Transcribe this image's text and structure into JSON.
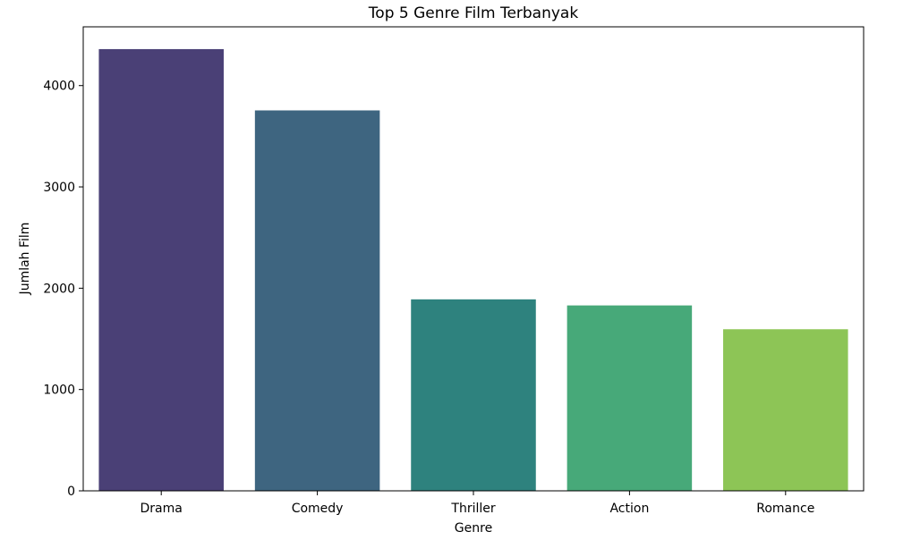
{
  "chart_data": {
    "type": "bar",
    "title": "Top 5 Genre Film Terbanyak",
    "xlabel": "Genre",
    "ylabel": "Jumlah Film",
    "categories": [
      "Drama",
      "Comedy",
      "Thriller",
      "Action",
      "Romance"
    ],
    "values": [
      4360,
      3755,
      1890,
      1830,
      1595
    ],
    "colors": [
      "#4a4076",
      "#3e6580",
      "#2e827e",
      "#47a979",
      "#8dc556"
    ],
    "ylim": [
      0,
      4580
    ],
    "yticks": [
      0,
      1000,
      2000,
      3000,
      4000
    ],
    "ytick_labels": [
      "0",
      "1000",
      "2000",
      "3000",
      "4000"
    ],
    "grid": false,
    "legend": "none"
  }
}
